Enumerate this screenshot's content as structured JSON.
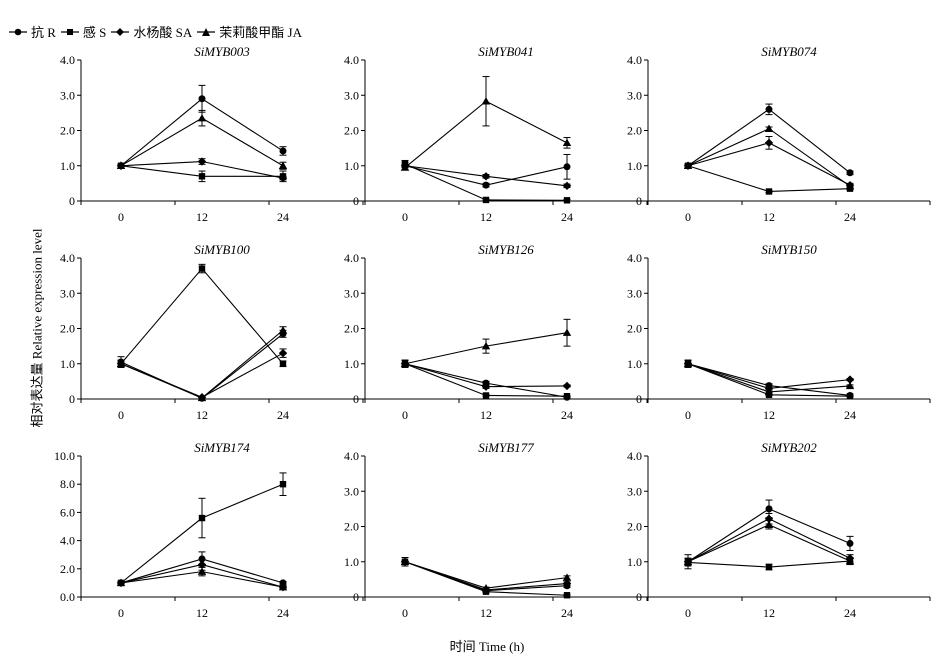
{
  "legend": [
    {
      "label": "抗 R",
      "marker": "circle"
    },
    {
      "label": "感 S",
      "marker": "square"
    },
    {
      "label": "水杨酸 SA",
      "marker": "diamond"
    },
    {
      "label": "茉莉酸甲酯 JA",
      "marker": "triangle"
    }
  ],
  "ylabel": "相对表达量 Relative expression level",
  "xlabel": "时间 Time (h)",
  "chart_data": [
    {
      "type": "line",
      "title": "SiMYB003",
      "categories": [
        "0",
        "12",
        "24"
      ],
      "ylim": [
        0,
        4
      ],
      "yticks": [
        "0",
        "1.0",
        "2.0",
        "3.0",
        "4.0"
      ],
      "series": [
        {
          "name": "抗 R",
          "marker": "circle",
          "values": [
            1.0,
            2.9,
            1.42
          ],
          "errors": [
            0.05,
            0.38,
            0.12
          ]
        },
        {
          "name": "感 S",
          "marker": "square",
          "values": [
            1.0,
            0.7,
            0.7
          ],
          "errors": [
            0.05,
            0.15,
            0.15
          ]
        },
        {
          "name": "水杨酸 SA",
          "marker": "diamond",
          "values": [
            1.0,
            1.12,
            0.65
          ],
          "errors": [
            0.05,
            0.08,
            0.05
          ]
        },
        {
          "name": "茉莉酸甲酯 JA",
          "marker": "triangle",
          "values": [
            1.0,
            2.35,
            1.0
          ],
          "errors": [
            0.05,
            0.22,
            0.1
          ]
        }
      ]
    },
    {
      "type": "line",
      "title": "SiMYB041",
      "categories": [
        "0",
        "12",
        "24"
      ],
      "ylim": [
        0,
        4
      ],
      "yticks": [
        "0",
        "1.0",
        "2.0",
        "3.0",
        "4.0"
      ],
      "series": [
        {
          "name": "抗 R",
          "marker": "circle",
          "values": [
            1.0,
            0.45,
            0.97
          ],
          "errors": [
            0.1,
            0.05,
            0.35
          ]
        },
        {
          "name": "感 S",
          "marker": "square",
          "values": [
            1.05,
            0.03,
            0.02
          ],
          "errors": [
            0.1,
            0.02,
            0.02
          ]
        },
        {
          "name": "水杨酸 SA",
          "marker": "diamond",
          "values": [
            1.0,
            0.7,
            0.43
          ],
          "errors": [
            0.05,
            0.05,
            0.05
          ]
        },
        {
          "name": "茉莉酸甲酯 JA",
          "marker": "triangle",
          "values": [
            0.95,
            2.83,
            1.65
          ],
          "errors": [
            0.05,
            0.7,
            0.15
          ]
        }
      ]
    },
    {
      "type": "line",
      "title": "SiMYB074",
      "categories": [
        "0",
        "12",
        "24"
      ],
      "ylim": [
        0,
        4
      ],
      "yticks": [
        "0",
        "1.0",
        "2.0",
        "3.0",
        "4.0"
      ],
      "series": [
        {
          "name": "抗 R",
          "marker": "circle",
          "values": [
            1.0,
            2.6,
            0.8
          ],
          "errors": [
            0.05,
            0.15,
            0.05
          ]
        },
        {
          "name": "感 S",
          "marker": "square",
          "values": [
            1.0,
            0.27,
            0.35
          ],
          "errors": [
            0.05,
            0.03,
            0.03
          ]
        },
        {
          "name": "水杨酸 SA",
          "marker": "diamond",
          "values": [
            1.0,
            1.65,
            0.45
          ],
          "errors": [
            0.05,
            0.18,
            0.05
          ]
        },
        {
          "name": "茉莉酸甲酯 JA",
          "marker": "triangle",
          "values": [
            1.0,
            2.05,
            0.42
          ],
          "errors": [
            0.05,
            0.05,
            0.05
          ]
        }
      ]
    },
    {
      "type": "line",
      "title": "SiMYB100",
      "categories": [
        "0",
        "12",
        "24"
      ],
      "ylim": [
        0,
        4
      ],
      "yticks": [
        "0",
        "1.0",
        "2.0",
        "3.0",
        "4.0"
      ],
      "series": [
        {
          "name": "抗 R",
          "marker": "circle",
          "values": [
            1.05,
            0.02,
            1.85
          ],
          "errors": [
            0.15,
            0.02,
            0.1
          ]
        },
        {
          "name": "感 S",
          "marker": "square",
          "values": [
            1.0,
            3.7,
            1.0
          ],
          "errors": [
            0.1,
            0.12,
            0.08
          ]
        },
        {
          "name": "水杨酸 SA",
          "marker": "diamond",
          "values": [
            1.0,
            0.05,
            1.3
          ],
          "errors": [
            0.1,
            0.02,
            0.12
          ]
        },
        {
          "name": "茉莉酸甲酯 JA",
          "marker": "triangle",
          "values": [
            1.0,
            0.03,
            1.95
          ],
          "errors": [
            0.1,
            0.02,
            0.1
          ]
        }
      ]
    },
    {
      "type": "line",
      "title": "SiMYB126",
      "categories": [
        "0",
        "12",
        "24"
      ],
      "ylim": [
        0,
        4
      ],
      "yticks": [
        "0",
        "1.0",
        "2.0",
        "3.0",
        "4.0"
      ],
      "series": [
        {
          "name": "抗 R",
          "marker": "circle",
          "values": [
            1.0,
            0.45,
            0.05
          ],
          "errors": [
            0.1,
            0.05,
            0.02
          ]
        },
        {
          "name": "感 S",
          "marker": "square",
          "values": [
            1.0,
            0.1,
            0.08
          ],
          "errors": [
            0.1,
            0.02,
            0.02
          ]
        },
        {
          "name": "水杨酸 SA",
          "marker": "diamond",
          "values": [
            1.0,
            0.35,
            0.37
          ],
          "errors": [
            0.1,
            0.05,
            0.03
          ]
        },
        {
          "name": "茉莉酸甲酯 JA",
          "marker": "triangle",
          "values": [
            1.0,
            1.5,
            1.88
          ],
          "errors": [
            0.1,
            0.2,
            0.38
          ]
        }
      ]
    },
    {
      "type": "line",
      "title": "SiMYB150",
      "categories": [
        "0",
        "12",
        "24"
      ],
      "ylim": [
        0,
        4
      ],
      "yticks": [
        "0",
        "1.0",
        "2.0",
        "3.0",
        "4.0"
      ],
      "series": [
        {
          "name": "抗 R",
          "marker": "circle",
          "values": [
            1.0,
            0.38,
            0.1
          ],
          "errors": [
            0.1,
            0.05,
            0.02
          ]
        },
        {
          "name": "感 S",
          "marker": "square",
          "values": [
            1.0,
            0.12,
            0.08
          ],
          "errors": [
            0.1,
            0.02,
            0.02
          ]
        },
        {
          "name": "水杨酸 SA",
          "marker": "diamond",
          "values": [
            1.0,
            0.3,
            0.55
          ],
          "errors": [
            0.1,
            0.03,
            0.03
          ]
        },
        {
          "name": "茉莉酸甲酯 JA",
          "marker": "triangle",
          "values": [
            1.0,
            0.2,
            0.37
          ],
          "errors": [
            0.1,
            0.03,
            0.03
          ]
        }
      ]
    },
    {
      "type": "line",
      "title": "SiMYB174",
      "categories": [
        "0",
        "12",
        "24"
      ],
      "ylim": [
        0,
        10
      ],
      "yticks": [
        "0.0",
        "2.0",
        "4.0",
        "6.0",
        "8.0",
        "10.0"
      ],
      "series": [
        {
          "name": "抗 R",
          "marker": "circle",
          "values": [
            1.0,
            2.7,
            1.0
          ],
          "errors": [
            0.1,
            0.5,
            0.1
          ]
        },
        {
          "name": "感 S",
          "marker": "square",
          "values": [
            1.0,
            5.6,
            8.0
          ],
          "errors": [
            0.1,
            1.4,
            0.8
          ]
        },
        {
          "name": "水杨酸 SA",
          "marker": "diamond",
          "values": [
            1.0,
            2.3,
            0.7
          ],
          "errors": [
            0.1,
            0.4,
            0.1
          ]
        },
        {
          "name": "茉莉酸甲酯 JA",
          "marker": "triangle",
          "values": [
            1.0,
            1.8,
            0.7
          ],
          "errors": [
            0.1,
            0.3,
            0.1
          ]
        }
      ]
    },
    {
      "type": "line",
      "title": "SiMYB177",
      "categories": [
        "0",
        "12",
        "24"
      ],
      "ylim": [
        0,
        4
      ],
      "yticks": [
        "0",
        "1.0",
        "2.0",
        "3.0",
        "4.0"
      ],
      "series": [
        {
          "name": "抗 R",
          "marker": "circle",
          "values": [
            1.0,
            0.18,
            0.32
          ],
          "errors": [
            0.12,
            0.03,
            0.05
          ]
        },
        {
          "name": "感 S",
          "marker": "square",
          "values": [
            1.0,
            0.15,
            0.05
          ],
          "errors": [
            0.12,
            0.03,
            0.02
          ]
        },
        {
          "name": "水杨酸 SA",
          "marker": "diamond",
          "values": [
            1.0,
            0.2,
            0.38
          ],
          "errors": [
            0.12,
            0.03,
            0.05
          ]
        },
        {
          "name": "茉莉酸甲酯 JA",
          "marker": "triangle",
          "values": [
            1.0,
            0.25,
            0.55
          ],
          "errors": [
            0.12,
            0.03,
            0.05
          ]
        }
      ]
    },
    {
      "type": "line",
      "title": "SiMYB202",
      "categories": [
        "0",
        "12",
        "24"
      ],
      "ylim": [
        0,
        4
      ],
      "yticks": [
        "0",
        "1.0",
        "2.0",
        "3.0",
        "4.0"
      ],
      "series": [
        {
          "name": "抗 R",
          "marker": "circle",
          "values": [
            1.0,
            2.5,
            1.52
          ],
          "errors": [
            0.2,
            0.25,
            0.2
          ]
        },
        {
          "name": "感 S",
          "marker": "square",
          "values": [
            0.98,
            0.85,
            1.02
          ],
          "errors": [
            0.1,
            0.08,
            0.08
          ]
        },
        {
          "name": "水杨酸 SA",
          "marker": "diamond",
          "values": [
            1.0,
            2.22,
            1.1
          ],
          "errors": [
            0.1,
            0.15,
            0.1
          ]
        },
        {
          "name": "茉莉酸甲酯 JA",
          "marker": "triangle",
          "values": [
            1.0,
            2.05,
            1.02
          ],
          "errors": [
            0.1,
            0.12,
            0.1
          ]
        }
      ]
    }
  ]
}
